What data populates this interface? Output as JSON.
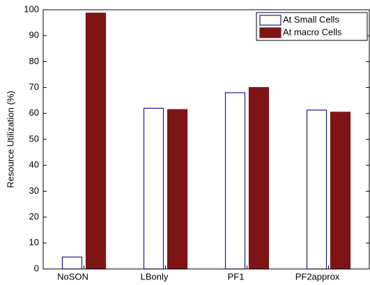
{
  "chart_data": {
    "type": "bar",
    "categories": [
      "NoSON",
      "LBonly",
      "PF1",
      "PF2approx"
    ],
    "series": [
      {
        "name": "At Small Cells",
        "color": "#ffffff",
        "stroke": "#1a1a8c",
        "values": [
          4.6,
          62,
          68,
          61.3
        ]
      },
      {
        "name": "At macro Cells",
        "color": "#7f1416",
        "stroke": "#7f1416",
        "values": [
          98.7,
          61.5,
          70,
          60.5
        ]
      }
    ],
    "ylabel": "Resource Utilization (%)",
    "ylim": [
      0,
      100
    ],
    "yticks": [
      0,
      10,
      20,
      30,
      40,
      50,
      60,
      70,
      80,
      90,
      100
    ],
    "grid": false,
    "legend": "top-right"
  }
}
